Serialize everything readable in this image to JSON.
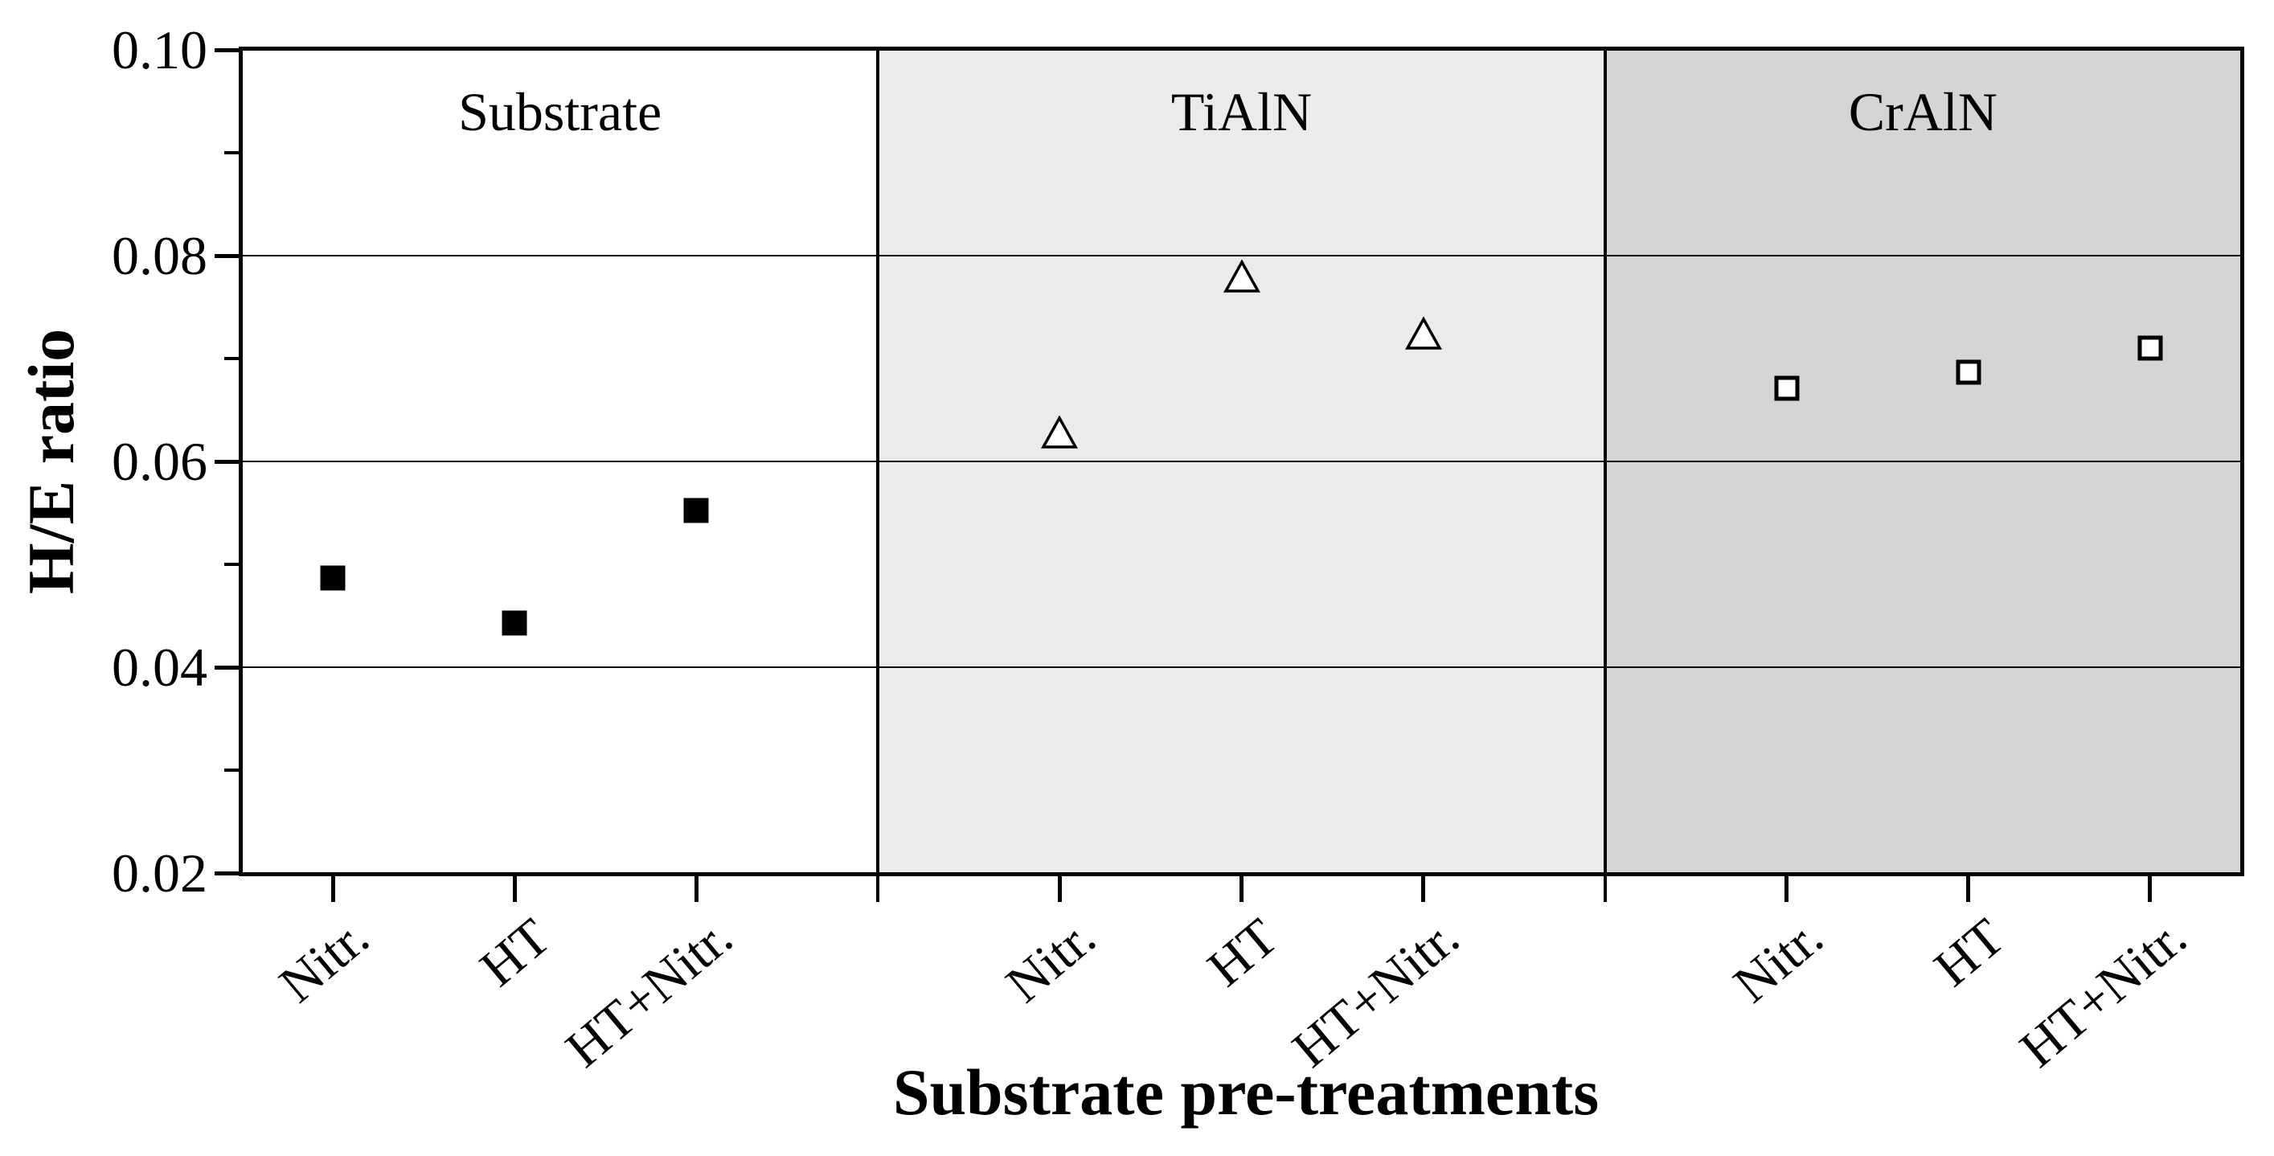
{
  "figure": {
    "background": "#ffffff",
    "axis_color": "#000000"
  },
  "chart_data": {
    "type": "scatter",
    "title": "",
    "xlabel": "Substrate pre-treatments",
    "ylabel": "H/E ratio",
    "ylim": [
      0.02,
      0.1
    ],
    "yticks": [
      0.02,
      0.04,
      0.06,
      0.08,
      0.1
    ],
    "ytick_labels": [
      "0.02",
      "0.04",
      "0.06",
      "0.08",
      "0.10"
    ],
    "minor_yticks": [
      0.03,
      0.05,
      0.07,
      0.09
    ],
    "gridlines_at": [
      0.04,
      0.06,
      0.08
    ],
    "grid": "horizontal-only",
    "legend": "none",
    "categories": [
      "Nitr.",
      "HT",
      "HT+Nitr."
    ],
    "panels": [
      {
        "label": "Substrate",
        "background": "#ffffff",
        "marker": "filled-square",
        "marker_color": "#000000",
        "values": [
          0.0487,
          0.0443,
          0.0552
        ]
      },
      {
        "label": "TiAlN",
        "background": "#ebebeb",
        "marker": "open-triangle",
        "marker_color": "#000000",
        "values": [
          0.0628,
          0.078,
          0.0724
        ]
      },
      {
        "label": "CrAlN",
        "background": "#d5d5d5",
        "marker": "open-square",
        "marker_color": "#000000",
        "values": [
          0.0671,
          0.0687,
          0.071
        ]
      }
    ]
  }
}
